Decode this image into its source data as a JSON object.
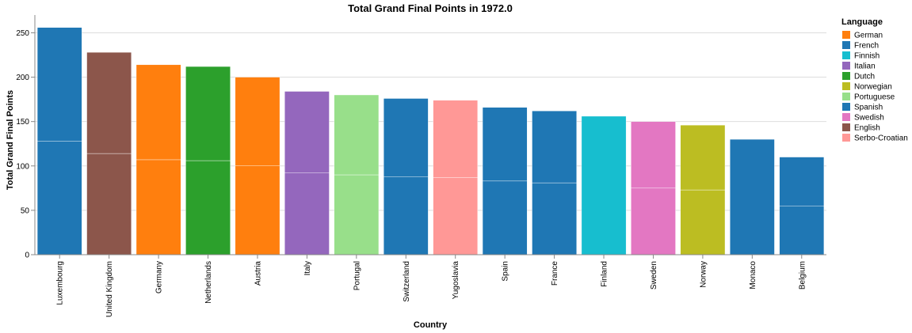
{
  "chart_data": {
    "type": "bar",
    "title": "Total Grand Final Points in 1972.0",
    "xlabel": "Country",
    "ylabel": "Total Grand Final Points",
    "ylim": [
      0,
      270
    ],
    "yticks": [
      0,
      50,
      100,
      150,
      200,
      250
    ],
    "grid": true,
    "legend_position": "right",
    "legend_title": "Language",
    "categories": [
      "Luxembourg",
      "United Kingdom",
      "Germany",
      "Netherlands",
      "Austria",
      "Italy",
      "Portugal",
      "Switzerland",
      "Yugoslavia",
      "Spain",
      "France",
      "Finland",
      "Sweden",
      "Norway",
      "Monaco",
      "Belgium"
    ],
    "values": [
      256,
      228,
      214,
      212,
      200,
      184,
      180,
      176,
      174,
      166,
      162,
      156,
      150,
      146,
      130,
      110
    ],
    "bar_languages": [
      "French",
      "English",
      "German",
      "Dutch",
      "German",
      "Italian",
      "Portuguese",
      "French",
      "Serbo-Croatian",
      "Spanish",
      "French",
      "Finnish",
      "Swedish",
      "Norwegian",
      "French",
      "French"
    ],
    "segments": [
      [
        128,
        128
      ],
      [
        114,
        114
      ],
      [
        107,
        107
      ],
      [
        106,
        106
      ],
      [
        100,
        100
      ],
      [
        92,
        92
      ],
      [
        90,
        90
      ],
      [
        88,
        88
      ],
      [
        87,
        87
      ],
      [
        83,
        83
      ],
      [
        81,
        81
      ],
      [
        156
      ],
      [
        75,
        75
      ],
      [
        73,
        73
      ],
      [
        130
      ],
      [
        55,
        55
      ]
    ],
    "legend": [
      {
        "name": "German",
        "color": "#ff7f0e"
      },
      {
        "name": "French",
        "color": "#1f77b4"
      },
      {
        "name": "Finnish",
        "color": "#17becf"
      },
      {
        "name": "Italian",
        "color": "#9467bd"
      },
      {
        "name": "Dutch",
        "color": "#2ca02c"
      },
      {
        "name": "Norwegian",
        "color": "#bcbd22"
      },
      {
        "name": "Portuguese",
        "color": "#98df8a"
      },
      {
        "name": "Spanish",
        "color": "#1f77b4"
      },
      {
        "name": "Swedish",
        "color": "#e377c2"
      },
      {
        "name": "English",
        "color": "#8c564b"
      },
      {
        "name": "Serbo-Croatian",
        "color": "#ff9896"
      }
    ]
  }
}
